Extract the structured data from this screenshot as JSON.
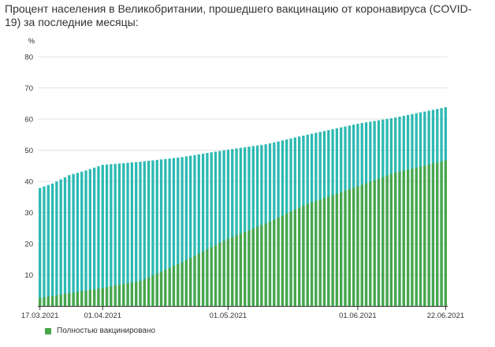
{
  "title": "Процент населения в Великобритании, прошедшего вакцинацию от коронавируса (COVID-19) за последние месяцы:",
  "colors": {
    "first_dose": "#2cb9b3",
    "fully": "#48a64a",
    "grid": "#e3e3e3",
    "axis": "#333333"
  },
  "chart_data": {
    "type": "bar",
    "stacked": false,
    "ylabel": "%",
    "ylim": [
      0,
      80
    ],
    "yticks": [
      10,
      20,
      30,
      40,
      50,
      60,
      70,
      80
    ],
    "grid": true,
    "x_start_date": "17.03.2021",
    "x_end_date": "22.06.2021",
    "x_tick_labels": [
      "17.03.2021",
      "01.04.2021",
      "01.05.2021",
      "01.06.2021",
      "22.06.2021"
    ],
    "legend": {
      "position": "bottom-left",
      "entries": [
        {
          "name": "Полностью вакцинировано",
          "color": "#48a64a"
        }
      ]
    },
    "series": [
      {
        "name": "",
        "color": "#2cb9b3",
        "anchors": [
          [
            "17.03.2021",
            37.9
          ],
          [
            "20.03.2021",
            39.3
          ],
          [
            "24.03.2021",
            42.0
          ],
          [
            "28.03.2021",
            43.5
          ],
          [
            "01.04.2021",
            45.3
          ],
          [
            "10.04.2021",
            46.3
          ],
          [
            "20.04.2021",
            47.8
          ],
          [
            "01.05.2021",
            50.2
          ],
          [
            "10.05.2021",
            51.9
          ],
          [
            "20.05.2021",
            55.0
          ],
          [
            "01.06.2021",
            58.5
          ],
          [
            "10.06.2021",
            60.5
          ],
          [
            "22.06.2021",
            63.8
          ]
        ]
      },
      {
        "name": "Полностью вакцинировано",
        "color": "#48a64a",
        "anchors": [
          [
            "17.03.2021",
            2.6
          ],
          [
            "01.04.2021",
            5.8
          ],
          [
            "10.04.2021",
            8.0
          ],
          [
            "20.04.2021",
            14.0
          ],
          [
            "01.05.2021",
            21.6
          ],
          [
            "10.05.2021",
            26.5
          ],
          [
            "20.05.2021",
            32.8
          ],
          [
            "01.06.2021",
            38.4
          ],
          [
            "10.06.2021",
            42.8
          ],
          [
            "22.06.2021",
            46.7
          ]
        ]
      }
    ]
  }
}
